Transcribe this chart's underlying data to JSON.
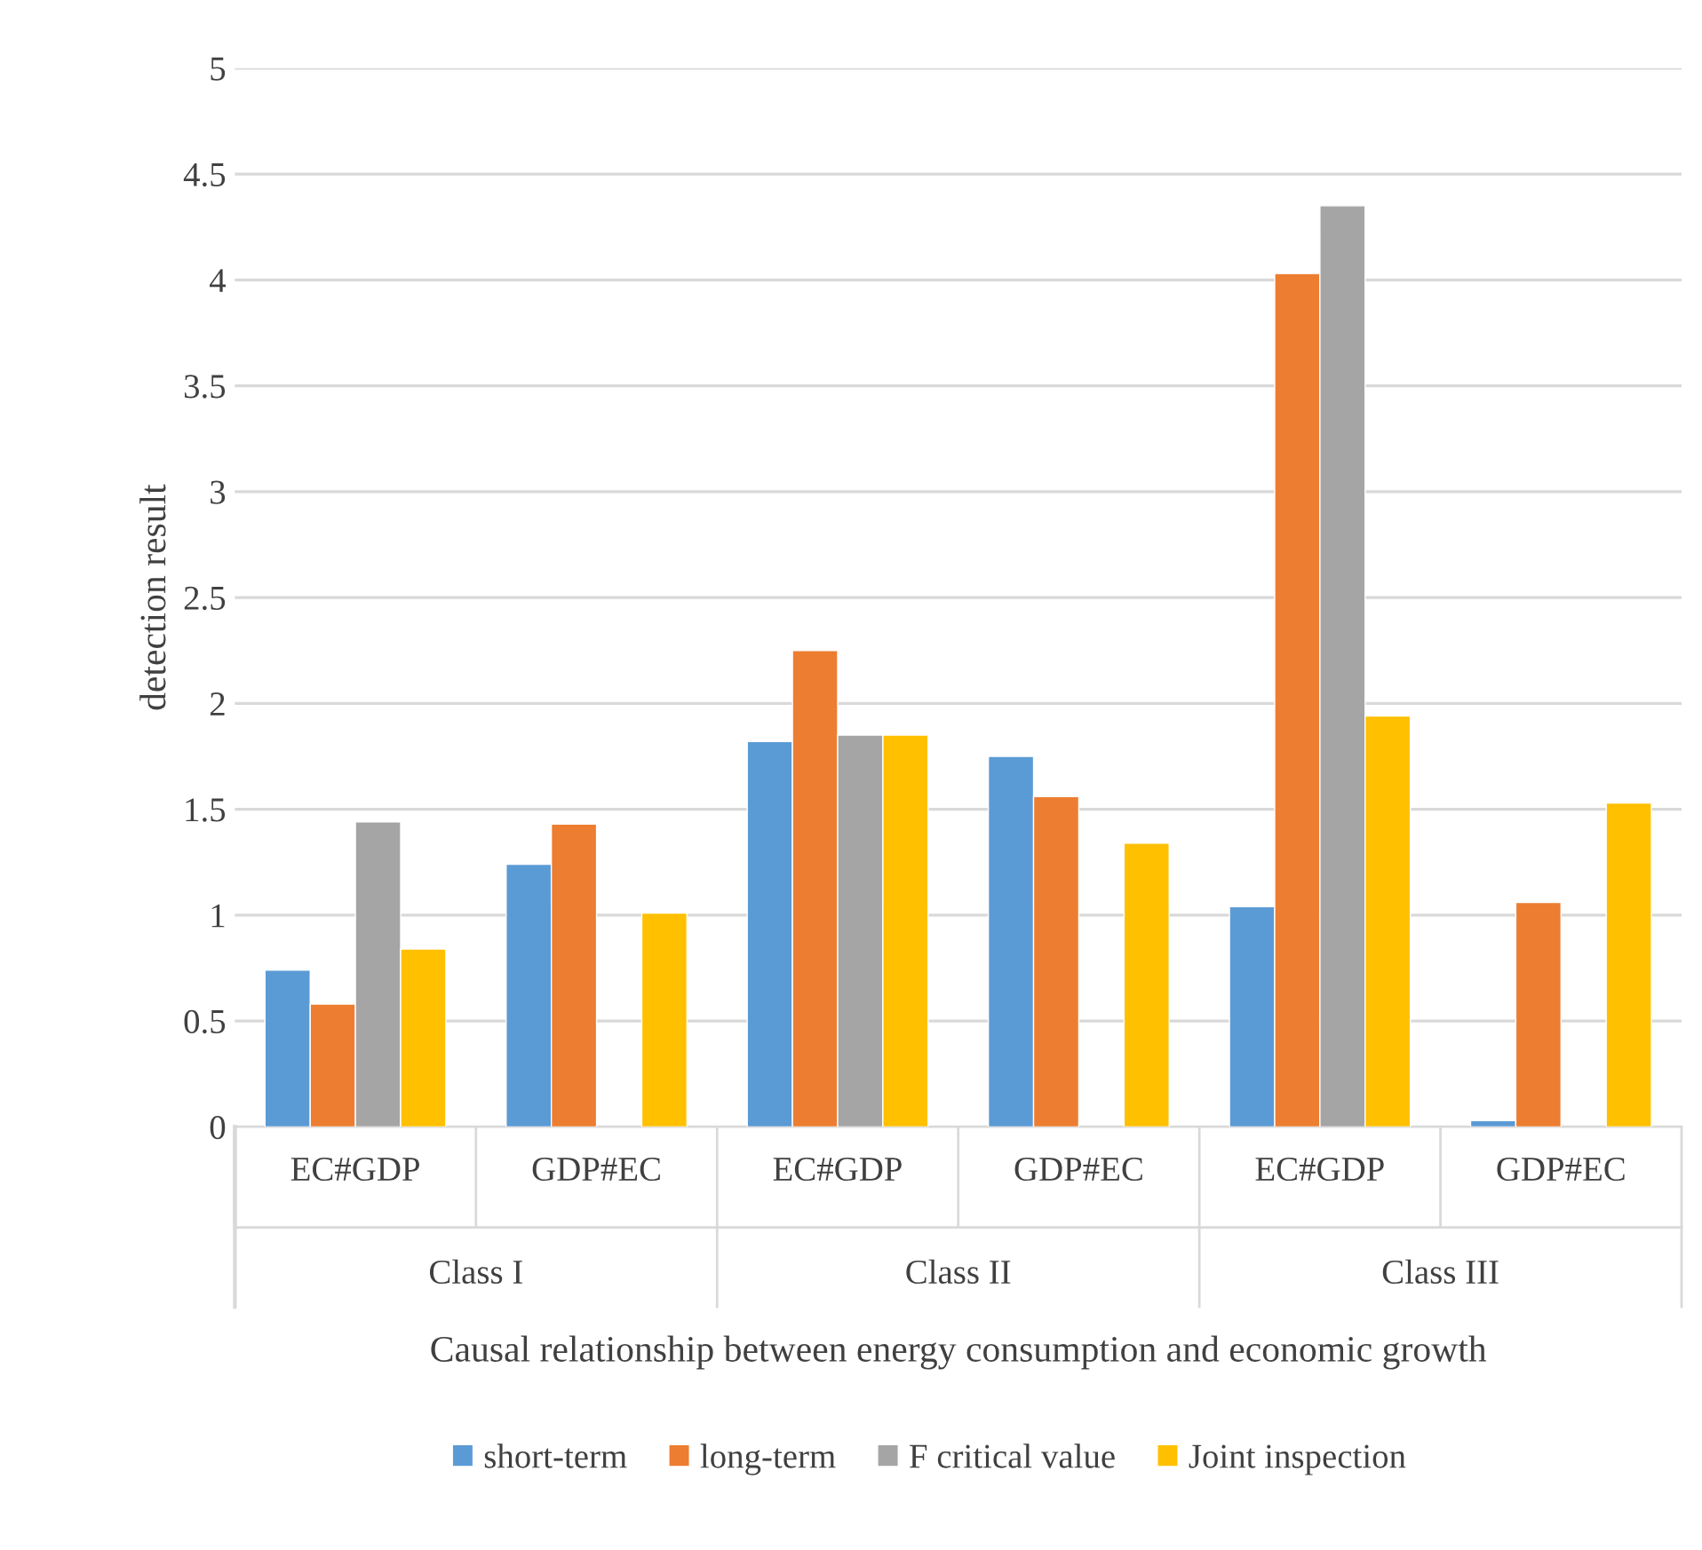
{
  "chart_data": {
    "type": "bar",
    "xlabel": "Causal relationship between energy consumption and economic growth",
    "ylabel": "detection result",
    "categories": [
      "EC#GDP",
      "GDP#EC",
      "EC#GDP",
      "GDP#EC",
      "EC#GDP",
      "GDP#EC"
    ],
    "annotations": [
      "Class I",
      "Class II",
      "Class III"
    ],
    "series": [
      {
        "name": "short-term",
        "color": "#5b9bd5",
        "values": [
          0.74,
          1.24,
          1.82,
          1.75,
          1.04,
          0.03
        ]
      },
      {
        "name": "long-term",
        "color": "#ed7d31",
        "values": [
          0.58,
          1.43,
          2.25,
          1.56,
          4.03,
          1.06
        ]
      },
      {
        "name": "F critical value",
        "color": "#a5a5a5",
        "values": [
          1.44,
          null,
          1.85,
          null,
          4.35,
          null
        ]
      },
      {
        "name": "Joint inspection",
        "color": "#ffc000",
        "values": [
          0.84,
          1.01,
          1.85,
          1.34,
          1.94,
          1.53
        ]
      }
    ],
    "ylim": [
      0,
      5
    ],
    "yticks": [
      0,
      0.5,
      1,
      1.5,
      2,
      2.5,
      3,
      3.5,
      4,
      4.5,
      5
    ],
    "grid": "y",
    "legend": "bottom"
  }
}
